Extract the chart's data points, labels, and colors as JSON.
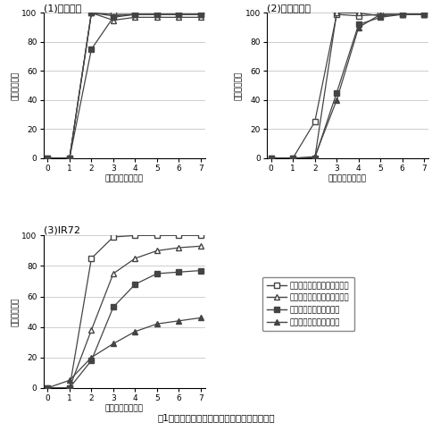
{
  "x": [
    0,
    1,
    2,
    3,
    4,
    5,
    6,
    7
  ],
  "charts": [
    {
      "title": "(1)レイホウ",
      "series": [
        {
          "values": [
            0,
            0,
            100,
            99,
            99,
            99,
            99,
            99
          ],
          "marker": "s",
          "filled": false
        },
        {
          "values": [
            0,
            0,
            100,
            95,
            97,
            97,
            97,
            97
          ],
          "marker": "^",
          "filled": false
        },
        {
          "values": [
            0,
            0,
            75,
            97,
            99,
            99,
            99,
            99
          ],
          "marker": "s",
          "filled": true
        },
        {
          "values": [
            0,
            0,
            100,
            98,
            99,
            99,
            99,
            99
          ],
          "marker": "^",
          "filled": true
        }
      ]
    },
    {
      "title": "(2)ヒノヒカリ",
      "series": [
        {
          "values": [
            0,
            0,
            25,
            99,
            98,
            99,
            99,
            99
          ],
          "marker": "s",
          "filled": false
        },
        {
          "values": [
            0,
            0,
            0,
            100,
            100,
            98,
            99,
            99
          ],
          "marker": "^",
          "filled": false
        },
        {
          "values": [
            0,
            0,
            0,
            45,
            92,
            97,
            99,
            99
          ],
          "marker": "s",
          "filled": true
        },
        {
          "values": [
            0,
            0,
            1,
            40,
            90,
            99,
            99,
            99
          ],
          "marker": "^",
          "filled": true
        }
      ]
    },
    {
      "title": "(3)IR72",
      "series": [
        {
          "values": [
            0,
            0,
            85,
            99,
            100,
            100,
            100,
            100
          ],
          "marker": "s",
          "filled": false
        },
        {
          "values": [
            0,
            0,
            38,
            75,
            85,
            90,
            92,
            93
          ],
          "marker": "^",
          "filled": false
        },
        {
          "values": [
            0,
            0,
            18,
            53,
            68,
            75,
            76,
            77
          ],
          "marker": "s",
          "filled": true
        },
        {
          "values": [
            0,
            5,
            20,
            29,
            37,
            42,
            44,
            46
          ],
          "marker": "^",
          "filled": true
        }
      ]
    }
  ],
  "xlabel": "置床後日数（日）",
  "ylabel": "発芽率（％）",
  "legend_labels": [
    "室内冷暗所保管・低水分種子",
    "室内冷暗所保管・高水分種子",
    "種子庫保管・低水分種子",
    "種子庫保管・高水分種子"
  ],
  "caption": "図1　保管条件の違いと発芽率の推移との関係",
  "xlim": [
    0,
    7
  ],
  "ylim": [
    0,
    100
  ],
  "yticks": [
    0,
    20,
    40,
    60,
    80,
    100
  ],
  "xticks": [
    0,
    1,
    2,
    3,
    4,
    5,
    6,
    7
  ],
  "line_color": "#444444",
  "grid_color": "#bbbbbb",
  "bg_color": "#ffffff"
}
